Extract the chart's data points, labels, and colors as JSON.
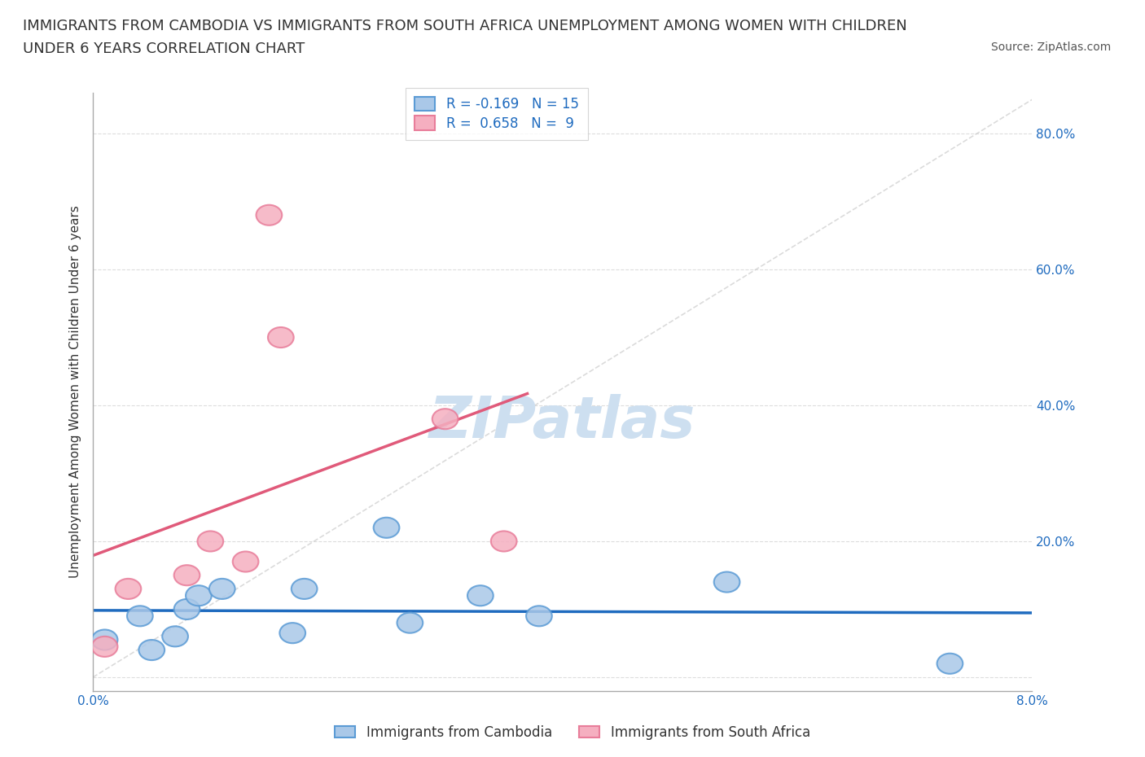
{
  "title_line1": "IMMIGRANTS FROM CAMBODIA VS IMMIGRANTS FROM SOUTH AFRICA UNEMPLOYMENT AMONG WOMEN WITH CHILDREN",
  "title_line2": "UNDER 6 YEARS CORRELATION CHART",
  "source": "Source: ZipAtlas.com",
  "ylabel": "Unemployment Among Women with Children Under 6 years",
  "xlim": [
    0,
    0.08
  ],
  "ylim": [
    -0.02,
    0.86
  ],
  "yticks": [
    0.0,
    0.2,
    0.4,
    0.6,
    0.8
  ],
  "ytick_labels": [
    "",
    "20.0%",
    "40.0%",
    "60.0%",
    "80.0%"
  ],
  "xticks": [
    0,
    0.01,
    0.02,
    0.03,
    0.04,
    0.05,
    0.06,
    0.07,
    0.08
  ],
  "xtick_labels": [
    "0.0%",
    "",
    "",
    "",
    "",
    "",
    "",
    "",
    "8.0%"
  ],
  "cambodia_color": "#aac8e8",
  "south_africa_color": "#f5afc0",
  "cambodia_edge_color": "#5b9bd5",
  "south_africa_edge_color": "#e87d9a",
  "trend_cambodia_color": "#1f6bbf",
  "trend_sa_color": "#e05a7a",
  "diag_color": "#cccccc",
  "watermark_color": "#cddff0",
  "R_cambodia": -0.169,
  "N_cambodia": 15,
  "R_sa": 0.658,
  "N_sa": 9,
  "legend_label_cambodia": "Immigrants from Cambodia",
  "legend_label_sa": "Immigrants from South Africa",
  "cambodia_x": [
    0.001,
    0.004,
    0.005,
    0.007,
    0.008,
    0.009,
    0.011,
    0.017,
    0.018,
    0.025,
    0.027,
    0.033,
    0.038,
    0.054,
    0.073
  ],
  "cambodia_y": [
    0.055,
    0.09,
    0.04,
    0.06,
    0.1,
    0.12,
    0.13,
    0.065,
    0.13,
    0.22,
    0.08,
    0.12,
    0.09,
    0.14,
    0.02
  ],
  "sa_x": [
    0.001,
    0.003,
    0.008,
    0.01,
    0.013,
    0.015,
    0.016,
    0.03,
    0.035
  ],
  "sa_y": [
    0.045,
    0.13,
    0.15,
    0.2,
    0.17,
    0.68,
    0.5,
    0.38,
    0.2
  ],
  "background_color": "#ffffff",
  "grid_color": "#dddddd",
  "title_fontsize": 13,
  "axis_label_fontsize": 11,
  "tick_fontsize": 11,
  "legend_fontsize": 12,
  "source_fontsize": 10
}
